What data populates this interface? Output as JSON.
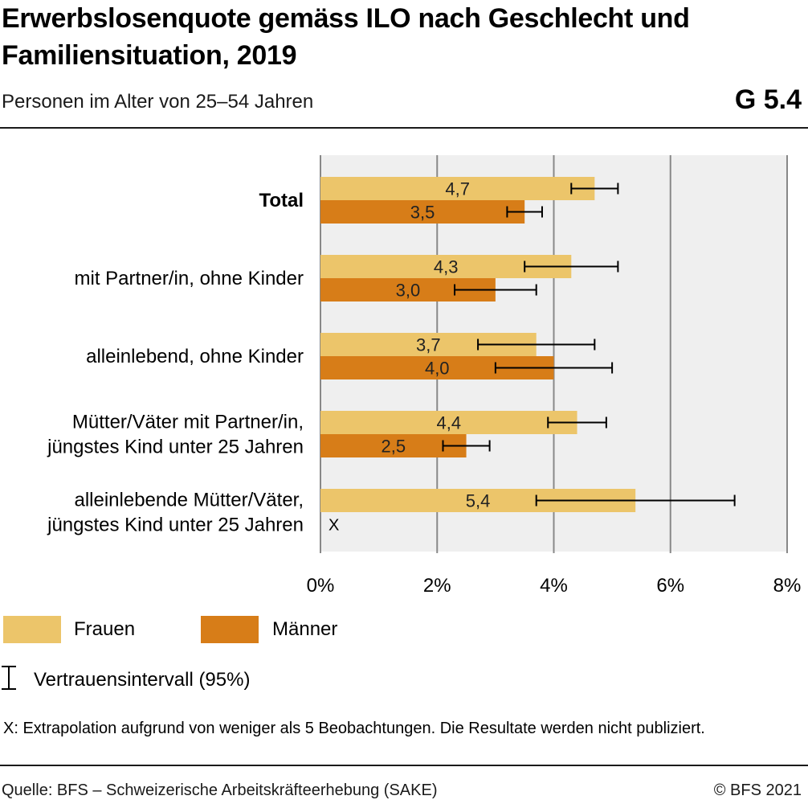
{
  "header": {
    "title": "Erwerbslosenquote gemäss ILO nach Geschlecht und Familiensituation, 2019",
    "subtitle": "Personen im Alter von 25–54 Jahren",
    "code": "G 5.4"
  },
  "legend": {
    "frauen": "Frauen",
    "maenner": "Männer",
    "ci": "Vertrauensintervall (95%)"
  },
  "footnote": "X: Extrapolation aufgrund von weniger als 5 Beobachtungen. Die Resultate werden nicht publiziert.",
  "source": "Quelle: BFS – Schweizerische Arbeitskräfteerhebung (SAKE)",
  "copyright": "© BFS 2021",
  "colors": {
    "frauen": "#ecc56a",
    "maenner": "#d77d18",
    "plot_bg": "#efefef",
    "grid": "#888888"
  },
  "chart_data": {
    "type": "bar",
    "orientation": "horizontal",
    "categories": [
      "Total",
      "mit Partner/in, ohne Kinder",
      "alleinlebend, ohne Kinder",
      "Mütter/Väter mit Partner/in, jüngstes Kind unter 25 Jahren",
      "alleinlebende Mütter/Väter, jüngstes Kind unter 25 Jahren"
    ],
    "category_lines": [
      [
        "Total"
      ],
      [
        "mit Partner/in, ohne Kinder"
      ],
      [
        "alleinlebend, ohne Kinder"
      ],
      [
        "Mütter/Väter mit Partner/in,",
        "jüngstes Kind unter 25 Jahren"
      ],
      [
        "alleinlebende Mütter/Väter,",
        "jüngstes Kind unter 25 Jahren"
      ]
    ],
    "bold_category": "Total",
    "series": [
      {
        "name": "Frauen",
        "values": [
          4.7,
          4.3,
          3.7,
          4.4,
          5.4
        ],
        "labels": [
          "4,7",
          "4,3",
          "3,7",
          "4,4",
          "5,4"
        ],
        "ci_low": [
          4.3,
          3.5,
          2.7,
          3.9,
          3.7
        ],
        "ci_high": [
          5.1,
          5.1,
          4.7,
          4.9,
          7.1
        ]
      },
      {
        "name": "Männer",
        "values": [
          3.5,
          3.0,
          4.0,
          2.5,
          null
        ],
        "labels": [
          "3,5",
          "3,0",
          "4,0",
          "2,5",
          "X"
        ],
        "ci_low": [
          3.2,
          2.3,
          3.0,
          2.1,
          null
        ],
        "ci_high": [
          3.8,
          3.7,
          5.0,
          2.9,
          null
        ]
      }
    ],
    "xlim": [
      0,
      8
    ],
    "xticks": [
      0,
      2,
      4,
      6,
      8
    ],
    "xtick_labels": [
      "0%",
      "2%",
      "4%",
      "6%",
      "8%"
    ],
    "grid": true,
    "legend_position": "bottom"
  }
}
